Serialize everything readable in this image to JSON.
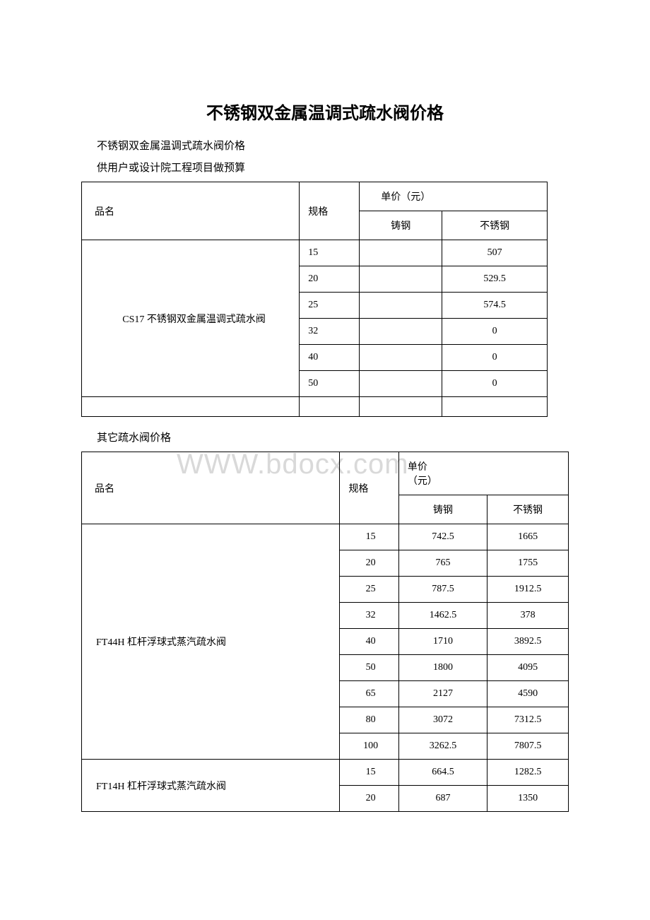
{
  "title": "不锈钢双金属温调式疏水阀价格",
  "subtitle1": "不锈钢双金属温调式疏水阀价格",
  "subtitle2": "供用户或设计院工程项目做预算",
  "subtitle3": "其它疏水阀价格",
  "watermark": "WWW.bdocx.com",
  "headers": {
    "name": "品名",
    "spec": "规格",
    "price": "单价（元）",
    "cast": "铸钢",
    "stainless": "不锈钢"
  },
  "table1": {
    "product": "CS17 不锈钢双金属温调式疏水阀",
    "rows": [
      {
        "spec": "15",
        "cast": "",
        "stainless": "507"
      },
      {
        "spec": "20",
        "cast": "",
        "stainless": "529.5"
      },
      {
        "spec": "25",
        "cast": "",
        "stainless": "574.5"
      },
      {
        "spec": "32",
        "cast": "",
        "stainless": "0"
      },
      {
        "spec": "40",
        "cast": "",
        "stainless": "0"
      },
      {
        "spec": "50",
        "cast": "",
        "stainless": "0"
      }
    ]
  },
  "table2": {
    "products": [
      {
        "name": "FT44H 杠杆浮球式蒸汽疏水阀",
        "rows": [
          {
            "spec": "15",
            "cast": "742.5",
            "stainless": "1665"
          },
          {
            "spec": "20",
            "cast": "765",
            "stainless": "1755"
          },
          {
            "spec": "25",
            "cast": "787.5",
            "stainless": "1912.5"
          },
          {
            "spec": "32",
            "cast": "1462.5",
            "stainless": "378"
          },
          {
            "spec": "40",
            "cast": "1710",
            "stainless": "3892.5"
          },
          {
            "spec": "50",
            "cast": "1800",
            "stainless": "4095"
          },
          {
            "spec": "65",
            "cast": "2127",
            "stainless": "4590"
          },
          {
            "spec": "80",
            "cast": "3072",
            "stainless": "7312.5"
          },
          {
            "spec": "100",
            "cast": "3262.5",
            "stainless": "7807.5"
          }
        ]
      },
      {
        "name": "FT14H 杠杆浮球式蒸汽疏水阀",
        "rows": [
          {
            "spec": "15",
            "cast": "664.5",
            "stainless": "1282.5"
          },
          {
            "spec": "20",
            "cast": "687",
            "stainless": "1350"
          }
        ]
      }
    ]
  }
}
